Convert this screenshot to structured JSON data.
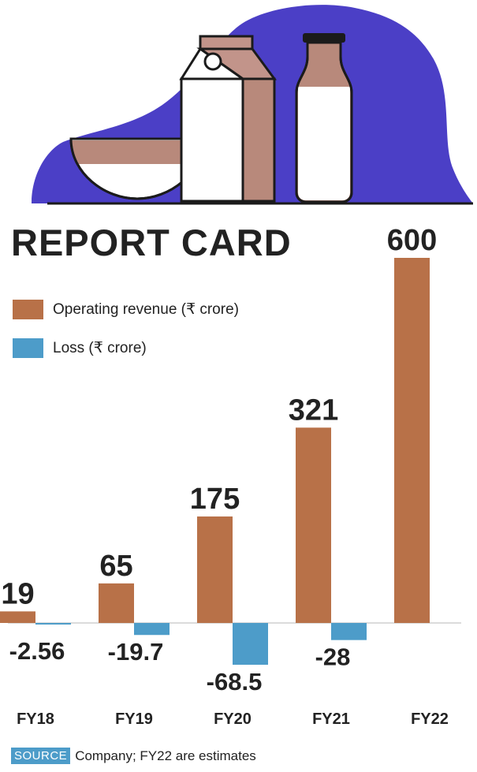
{
  "title": "REPORT CARD",
  "legend": {
    "revenue_label": "Operating revenue (₹ crore)",
    "loss_label": "Loss (₹ crore)"
  },
  "source": {
    "badge": "SOURCE",
    "text": "Company; FY22 are estimates"
  },
  "colors": {
    "revenue": "#b87148",
    "loss": "#4d9cc9",
    "hero_blob": "#4b3fc6",
    "text": "#222222"
  },
  "chart_data": {
    "type": "bar",
    "categories": [
      "FY18",
      "FY19",
      "FY20",
      "FY21",
      "FY22"
    ],
    "series": [
      {
        "name": "Operating revenue (₹ crore)",
        "values": [
          19,
          65,
          175,
          321,
          600
        ],
        "labels": [
          "19",
          "65",
          "175",
          "321",
          "600"
        ]
      },
      {
        "name": "Loss (₹ crore)",
        "values": [
          -2.56,
          -19.7,
          -68.5,
          -28,
          null
        ],
        "labels": [
          "-2.56",
          "-19.7",
          "-68.5",
          "-28",
          ""
        ]
      }
    ],
    "xlabel": "",
    "ylabel": "",
    "ylim": [
      -68.5,
      600
    ],
    "grid": false,
    "legend": "top-left"
  }
}
